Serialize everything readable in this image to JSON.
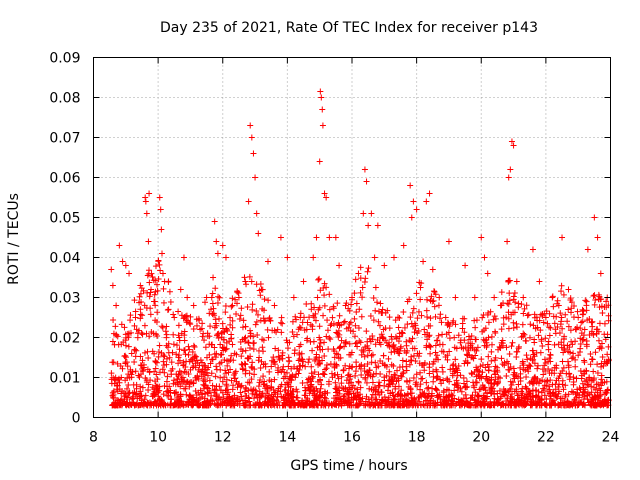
{
  "chart_data": {
    "type": "scatter",
    "title": "Day 235 of 2021, Rate Of TEC Index for receiver p143",
    "xlabel": "GPS time / hours",
    "ylabel": "ROTI / TECUs",
    "xlim": [
      8,
      24
    ],
    "ylim": [
      0,
      0.09
    ],
    "x_ticks": [
      8,
      10,
      12,
      14,
      16,
      18,
      20,
      22,
      24
    ],
    "x_tick_labels": [
      "8",
      "10",
      "12",
      "14",
      "16",
      "18",
      "20",
      "22",
      "24"
    ],
    "y_ticks": [
      0,
      0.01,
      0.02,
      0.03,
      0.04,
      0.05,
      0.06,
      0.07,
      0.08,
      0.09
    ],
    "y_tick_labels": [
      "0",
      "0.01",
      "0.02",
      "0.03",
      "0.04",
      "0.05",
      "0.06",
      "0.07",
      "0.08",
      "0.09"
    ],
    "grid": true,
    "marker": "+",
    "series": [
      {
        "color": "#ff0000",
        "points": [
          [
            8.55,
            0.037
          ],
          [
            8.6,
            0.033
          ],
          [
            8.7,
            0.028
          ],
          [
            8.8,
            0.043
          ],
          [
            8.9,
            0.039
          ],
          [
            9.0,
            0.038
          ],
          [
            9.1,
            0.036
          ],
          [
            9.3,
            0.025
          ],
          [
            9.45,
            0.033
          ],
          [
            9.6,
            0.055
          ],
          [
            9.62,
            0.054
          ],
          [
            9.65,
            0.051
          ],
          [
            9.7,
            0.044
          ],
          [
            9.72,
            0.056
          ],
          [
            9.9,
            0.029
          ],
          [
            10.05,
            0.055
          ],
          [
            10.08,
            0.052
          ],
          [
            10.1,
            0.047
          ],
          [
            10.12,
            0.041
          ],
          [
            10.15,
            0.036
          ],
          [
            10.2,
            0.034
          ],
          [
            10.5,
            0.025
          ],
          [
            10.7,
            0.032
          ],
          [
            10.8,
            0.04
          ],
          [
            10.9,
            0.03
          ],
          [
            11.1,
            0.028
          ],
          [
            11.3,
            0.022
          ],
          [
            11.5,
            0.03
          ],
          [
            11.7,
            0.035
          ],
          [
            11.75,
            0.049
          ],
          [
            11.8,
            0.044
          ],
          [
            11.85,
            0.041
          ],
          [
            12.0,
            0.043
          ],
          [
            12.1,
            0.04
          ],
          [
            12.3,
            0.028
          ],
          [
            12.5,
            0.03
          ],
          [
            12.7,
            0.034
          ],
          [
            12.8,
            0.054
          ],
          [
            12.85,
            0.073
          ],
          [
            12.9,
            0.07
          ],
          [
            12.95,
            0.066
          ],
          [
            13.0,
            0.06
          ],
          [
            13.05,
            0.051
          ],
          [
            13.1,
            0.046
          ],
          [
            13.2,
            0.032
          ],
          [
            13.4,
            0.039
          ],
          [
            13.6,
            0.028
          ],
          [
            13.8,
            0.045
          ],
          [
            14.0,
            0.04
          ],
          [
            14.2,
            0.03
          ],
          [
            14.4,
            0.025
          ],
          [
            14.5,
            0.034
          ],
          [
            14.6,
            0.022
          ],
          [
            14.8,
            0.04
          ],
          [
            14.9,
            0.045
          ],
          [
            15.0,
            0.064
          ],
          [
            15.02,
            0.0815
          ],
          [
            15.05,
            0.08
          ],
          [
            15.08,
            0.077
          ],
          [
            15.1,
            0.073
          ],
          [
            15.15,
            0.056
          ],
          [
            15.2,
            0.055
          ],
          [
            15.3,
            0.045
          ],
          [
            15.5,
            0.045
          ],
          [
            15.6,
            0.038
          ],
          [
            15.8,
            0.028
          ],
          [
            16.0,
            0.03
          ],
          [
            16.2,
            0.036
          ],
          [
            16.35,
            0.051
          ],
          [
            16.4,
            0.062
          ],
          [
            16.45,
            0.059
          ],
          [
            16.5,
            0.048
          ],
          [
            16.6,
            0.051
          ],
          [
            16.7,
            0.04
          ],
          [
            16.8,
            0.048
          ],
          [
            17.0,
            0.038
          ],
          [
            17.3,
            0.04
          ],
          [
            17.6,
            0.043
          ],
          [
            17.8,
            0.058
          ],
          [
            17.85,
            0.05
          ],
          [
            17.9,
            0.054
          ],
          [
            18.0,
            0.052
          ],
          [
            18.2,
            0.039
          ],
          [
            18.3,
            0.054
          ],
          [
            18.4,
            0.056
          ],
          [
            18.5,
            0.037
          ],
          [
            18.7,
            0.03
          ],
          [
            18.9,
            0.025
          ],
          [
            19.0,
            0.044
          ],
          [
            19.2,
            0.03
          ],
          [
            19.5,
            0.038
          ],
          [
            19.8,
            0.03
          ],
          [
            20.0,
            0.045
          ],
          [
            20.1,
            0.04
          ],
          [
            20.2,
            0.036
          ],
          [
            20.4,
            0.03
          ],
          [
            20.6,
            0.028
          ],
          [
            20.8,
            0.044
          ],
          [
            20.85,
            0.06
          ],
          [
            20.9,
            0.062
          ],
          [
            20.95,
            0.069
          ],
          [
            21.0,
            0.068
          ],
          [
            21.1,
            0.034
          ],
          [
            21.3,
            0.03
          ],
          [
            21.6,
            0.042
          ],
          [
            21.8,
            0.034
          ],
          [
            22.0,
            0.025
          ],
          [
            22.2,
            0.03
          ],
          [
            22.4,
            0.028
          ],
          [
            22.5,
            0.045
          ],
          [
            22.7,
            0.032
          ],
          [
            23.0,
            0.025
          ],
          [
            23.3,
            0.042
          ],
          [
            23.5,
            0.05
          ],
          [
            23.6,
            0.045
          ],
          [
            23.7,
            0.036
          ],
          [
            23.9,
            0.03
          ]
        ]
      }
    ]
  }
}
